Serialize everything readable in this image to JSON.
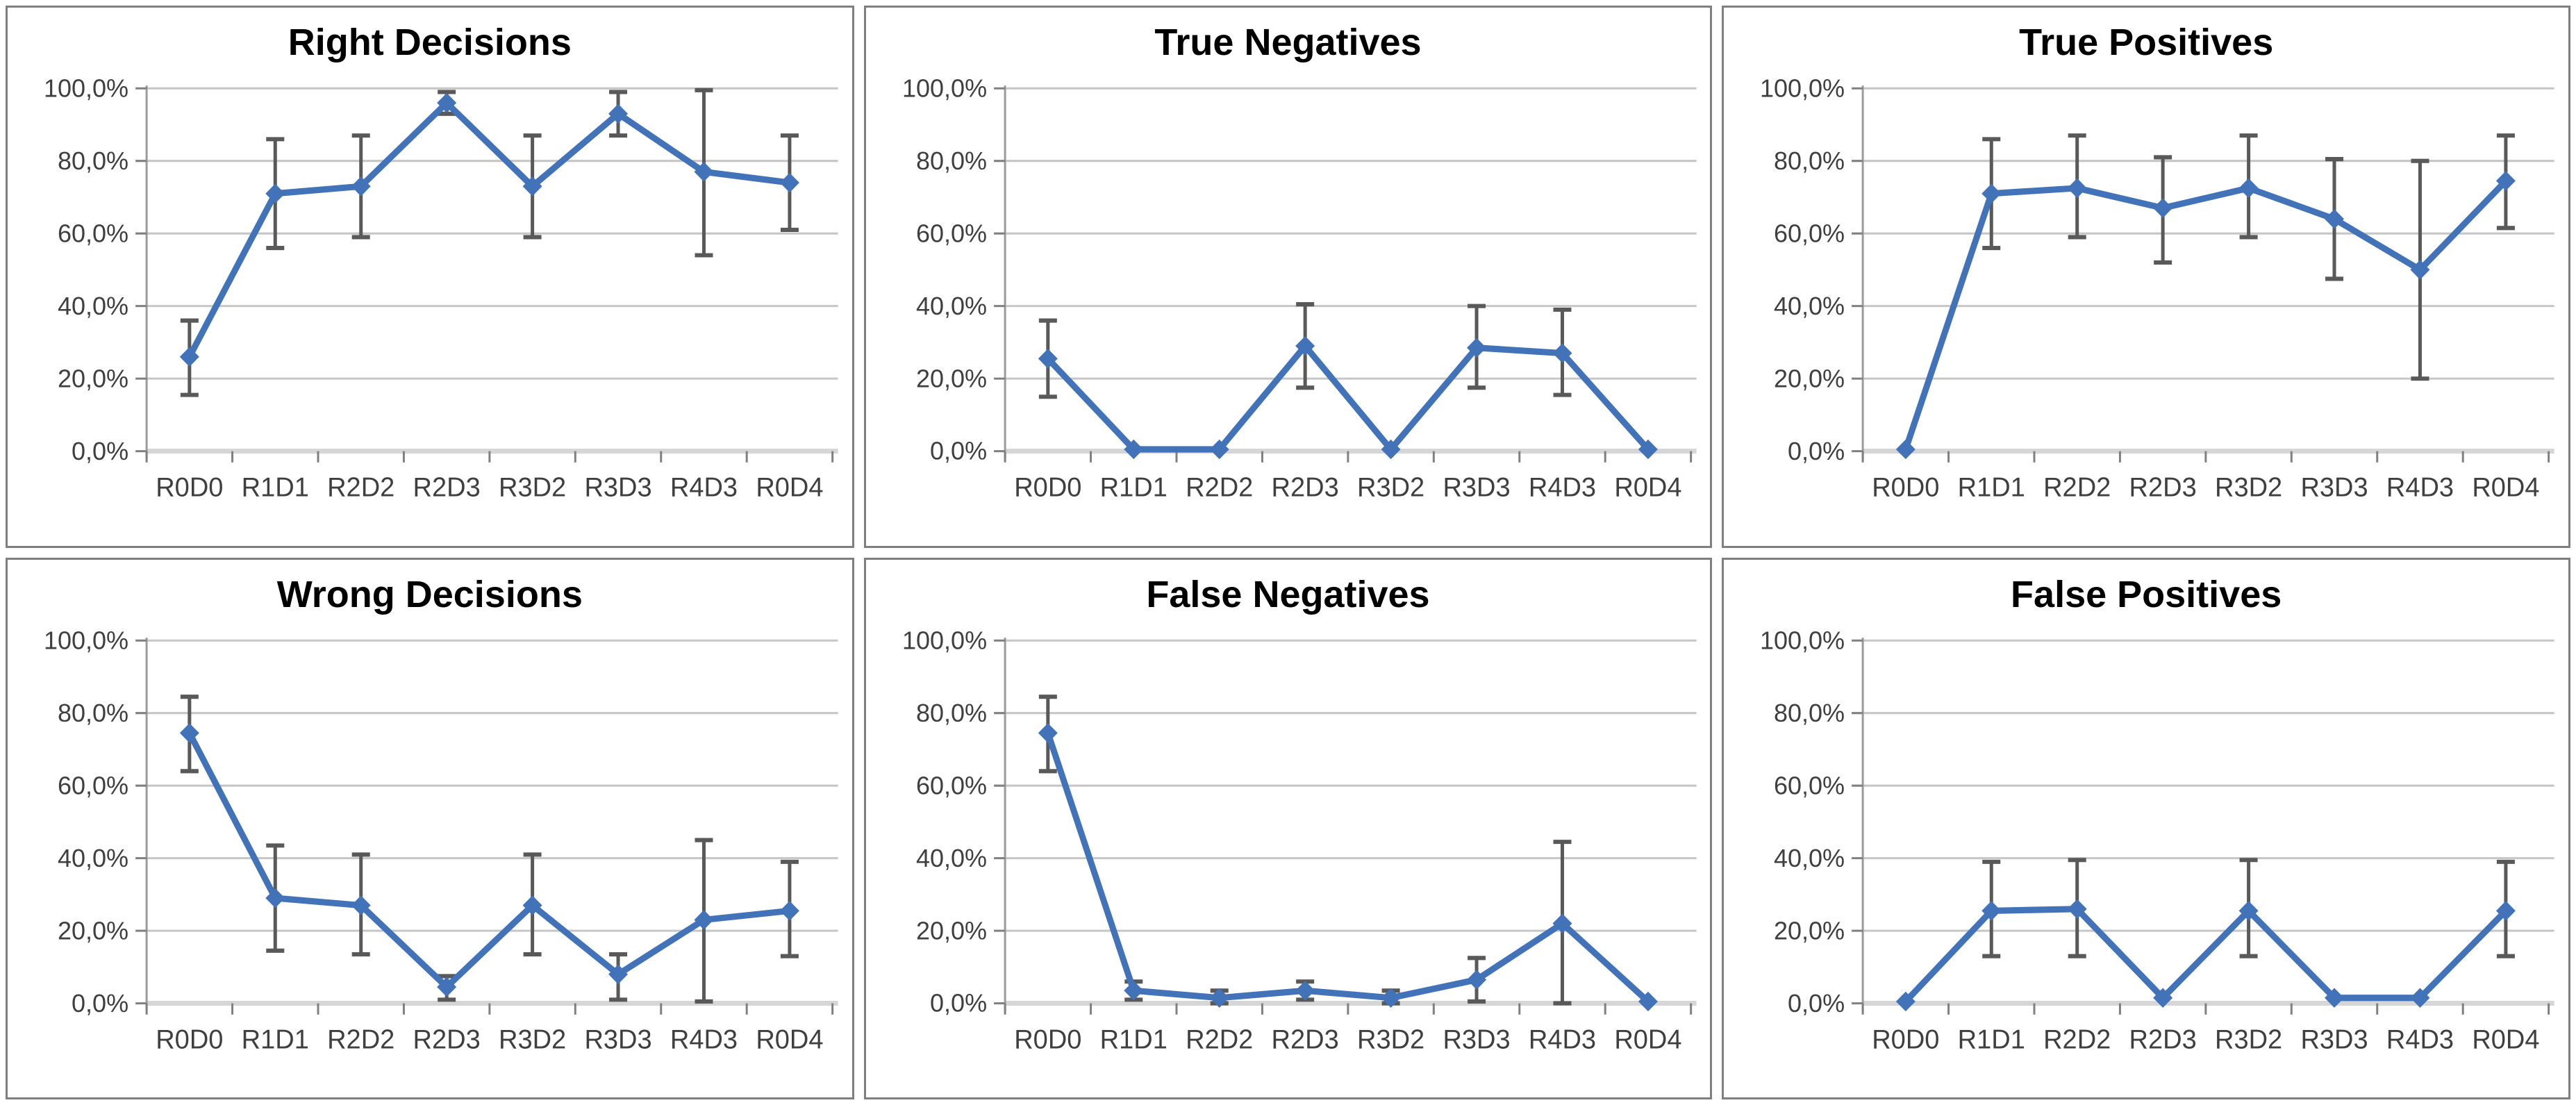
{
  "styles": {
    "line_color": "#4273b8",
    "marker_color": "#4273b8",
    "error_bar_color": "#595959",
    "gridline_color": "#c6c6c6",
    "zero_line_color": "#d6d6d6",
    "axis_line_color": "#9b9b9b",
    "tick_color": "#808080",
    "tick_label_color": "#3f3f3f",
    "title_color": "#000000",
    "panel_border_color": "#7f7f7f",
    "background": "#ffffff"
  },
  "axis": {
    "categories": [
      "R0D0",
      "R1D1",
      "R2D2",
      "R2D3",
      "R3D2",
      "R3D3",
      "R4D3",
      "R0D4"
    ],
    "y_tick_labels": [
      "100,0%",
      "80,0%",
      "60,0%",
      "40,0%",
      "20,0%",
      "0,0%"
    ],
    "y_tick_values": [
      100,
      80,
      60,
      40,
      20,
      0
    ],
    "ylim": [
      0,
      100
    ],
    "grid": true,
    "legend": false
  },
  "chart_data": [
    {
      "type": "line",
      "slug": "right-decisions",
      "title": "Right Decisions",
      "xlabel": "",
      "ylabel": "",
      "ylim": [
        0,
        100
      ],
      "categories": [
        "R0D0",
        "R1D1",
        "R2D2",
        "R2D3",
        "R3D2",
        "R3D3",
        "R4D3",
        "R0D4"
      ],
      "values": [
        26,
        71,
        73,
        96,
        73,
        93,
        77,
        74
      ],
      "error_low": [
        15.5,
        56,
        59,
        93,
        59,
        87,
        54,
        61
      ],
      "error_high": [
        36,
        86,
        87,
        99,
        87,
        99,
        99.5,
        87
      ]
    },
    {
      "type": "line",
      "slug": "true-negatives",
      "title": "True Negatives",
      "xlabel": "",
      "ylabel": "",
      "ylim": [
        0,
        100
      ],
      "categories": [
        "R0D0",
        "R1D1",
        "R2D2",
        "R2D3",
        "R3D2",
        "R3D3",
        "R4D3",
        "R0D4"
      ],
      "values": [
        25.5,
        0.5,
        0.5,
        29,
        0.5,
        28.5,
        27,
        0.5
      ],
      "error_low": [
        15,
        null,
        null,
        17.5,
        null,
        17.5,
        15.5,
        null
      ],
      "error_high": [
        36,
        null,
        null,
        40.5,
        null,
        40,
        39,
        null
      ]
    },
    {
      "type": "line",
      "slug": "true-positives",
      "title": "True Positives",
      "xlabel": "",
      "ylabel": "",
      "ylim": [
        0,
        100
      ],
      "categories": [
        "R0D0",
        "R1D1",
        "R2D2",
        "R2D3",
        "R3D2",
        "R3D3",
        "R4D3",
        "R0D4"
      ],
      "values": [
        0.5,
        71,
        72.5,
        67,
        72.5,
        64,
        50,
        74.5
      ],
      "error_low": [
        null,
        56,
        59,
        52,
        59,
        47.5,
        20,
        61.5
      ],
      "error_high": [
        null,
        86,
        87,
        81,
        87,
        80.5,
        80,
        87
      ]
    },
    {
      "type": "line",
      "slug": "wrong-decisions",
      "title": "Wrong Decisions",
      "xlabel": "",
      "ylabel": "",
      "ylim": [
        0,
        100
      ],
      "categories": [
        "R0D0",
        "R1D1",
        "R2D2",
        "R2D3",
        "R3D2",
        "R3D3",
        "R4D3",
        "R0D4"
      ],
      "values": [
        74.5,
        29,
        27,
        4.5,
        27,
        8,
        23,
        25.5
      ],
      "error_low": [
        64,
        14.5,
        13.5,
        1,
        13.5,
        1,
        0.5,
        13
      ],
      "error_high": [
        84.5,
        43.5,
        41,
        7.5,
        41,
        13.5,
        45,
        39
      ]
    },
    {
      "type": "line",
      "slug": "false-negatives",
      "title": "False Negatives",
      "xlabel": "",
      "ylabel": "",
      "ylim": [
        0,
        100
      ],
      "categories": [
        "R0D0",
        "R1D1",
        "R2D2",
        "R2D3",
        "R3D2",
        "R3D3",
        "R4D3",
        "R0D4"
      ],
      "values": [
        74.5,
        3.5,
        1.5,
        3.5,
        1.5,
        6.5,
        22,
        0.5
      ],
      "error_low": [
        64,
        1,
        0,
        1,
        0,
        0.5,
        0,
        null
      ],
      "error_high": [
        84.5,
        6,
        3.5,
        6,
        3.5,
        12.5,
        44.5,
        null
      ]
    },
    {
      "type": "line",
      "slug": "false-positives",
      "title": "False Positives",
      "xlabel": "",
      "ylabel": "",
      "ylim": [
        0,
        100
      ],
      "categories": [
        "R0D0",
        "R1D1",
        "R2D2",
        "R2D3",
        "R3D2",
        "R3D3",
        "R4D3",
        "R0D4"
      ],
      "values": [
        0.5,
        25.5,
        26,
        1.5,
        25.5,
        1.5,
        1.5,
        25.5
      ],
      "error_low": [
        null,
        13,
        13,
        null,
        13,
        null,
        null,
        13
      ],
      "error_high": [
        null,
        39,
        39.5,
        null,
        39.5,
        null,
        null,
        39
      ]
    }
  ]
}
